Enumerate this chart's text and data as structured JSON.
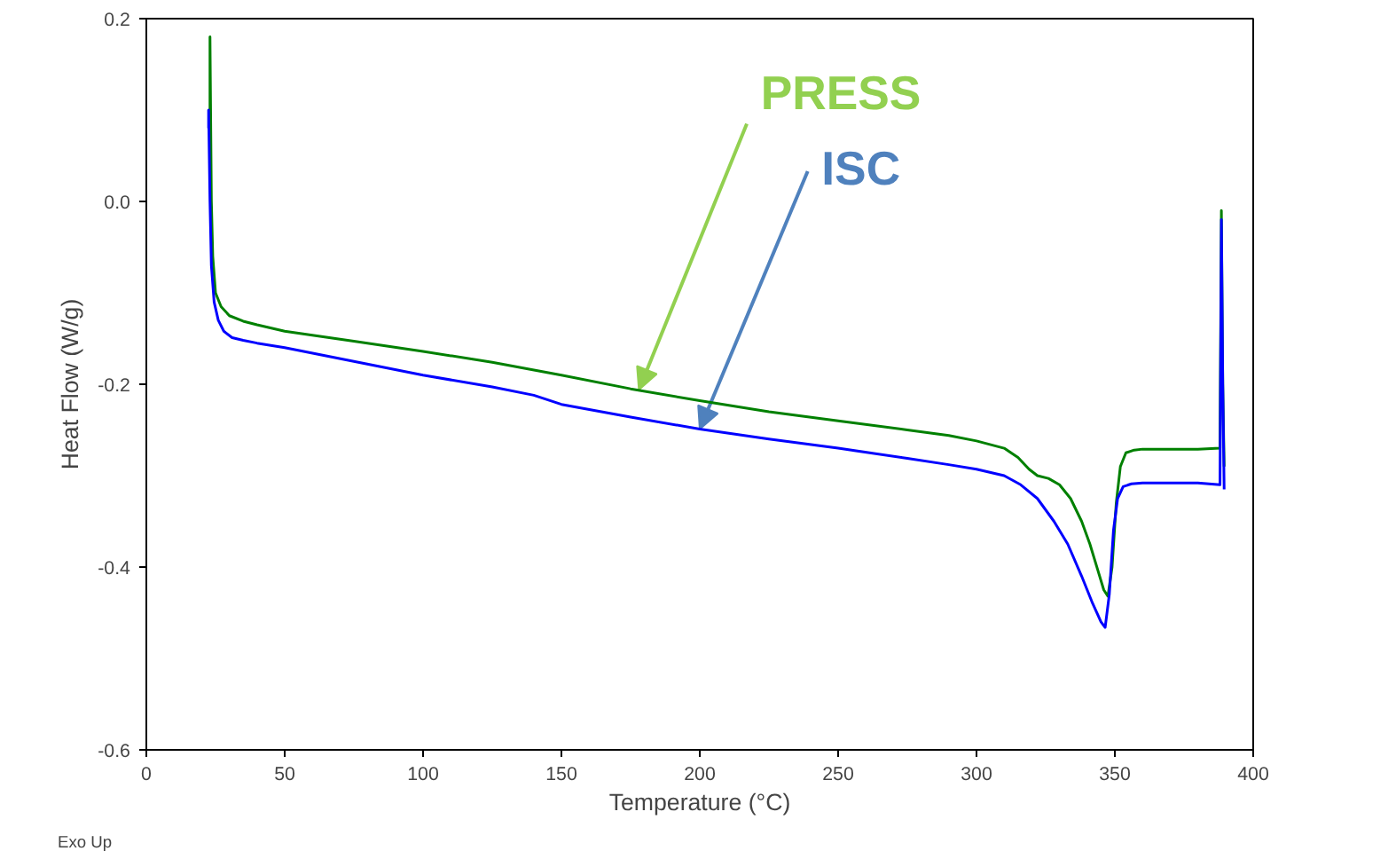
{
  "chart_data": {
    "type": "line",
    "xlabel": "Temperature (°C)",
    "ylabel": "Heat Flow (W/g)",
    "xlim": [
      0,
      400
    ],
    "ylim": [
      -0.6,
      0.2
    ],
    "xticks": [
      0,
      50,
      100,
      150,
      200,
      250,
      300,
      350,
      400
    ],
    "yticks": [
      {
        "value": -0.6,
        "label": "-0.6"
      },
      {
        "value": -0.4,
        "label": "-0.4"
      },
      {
        "value": -0.2,
        "label": "-0.2"
      },
      {
        "value": 0,
        "label": "0.0"
      },
      {
        "value": 0.2,
        "label": "0.2"
      }
    ],
    "grid": false,
    "marker": "none",
    "line_style": "solid",
    "annotations": [
      {
        "text": "PRESS",
        "x": 178,
        "y": -0.206
      },
      {
        "text": "ISC",
        "x": 200,
        "y": -0.249
      },
      "Exo Up"
    ],
    "series": [
      {
        "color": "#008000",
        "x": [
          23,
          23,
          23.5,
          24,
          25,
          27,
          30,
          35,
          40,
          50,
          75,
          100,
          125,
          150,
          175,
          200,
          225,
          250,
          275,
          290,
          300,
          310,
          315,
          319,
          322,
          326,
          330,
          334,
          338,
          341,
          344,
          346,
          347.5,
          349,
          350.5,
          352,
          354,
          357,
          360,
          370,
          380,
          388,
          388.5,
          389,
          389.5
        ],
        "values": [
          0.1,
          0.18,
          0.0,
          -0.06,
          -0.1,
          -0.115,
          -0.125,
          -0.131,
          -0.135,
          -0.142,
          -0.153,
          -0.164,
          -0.176,
          -0.19,
          -0.205,
          -0.218,
          -0.23,
          -0.24,
          -0.25,
          -0.256,
          -0.262,
          -0.27,
          -0.28,
          -0.293,
          -0.3,
          -0.303,
          -0.31,
          -0.325,
          -0.35,
          -0.375,
          -0.405,
          -0.425,
          -0.432,
          -0.4,
          -0.33,
          -0.29,
          -0.275,
          -0.272,
          -0.271,
          -0.271,
          -0.271,
          -0.27,
          -0.01,
          -0.2,
          -0.29
        ]
      },
      {
        "color": "#0000ff",
        "x": [
          22.5,
          22.5,
          23,
          23.5,
          24.5,
          26,
          28,
          31,
          35,
          40,
          50,
          75,
          100,
          125,
          140,
          150,
          175,
          200,
          225,
          250,
          275,
          290,
          300,
          310,
          316,
          322,
          328,
          333,
          338,
          342,
          345,
          346.5,
          348,
          349.5,
          351,
          353,
          356,
          360,
          370,
          380,
          388,
          388.5,
          389,
          389.5
        ],
        "values": [
          0.08,
          0.1,
          0.0,
          -0.07,
          -0.11,
          -0.13,
          -0.142,
          -0.149,
          -0.152,
          -0.155,
          -0.16,
          -0.175,
          -0.19,
          -0.203,
          -0.212,
          -0.222,
          -0.236,
          -0.249,
          -0.26,
          -0.27,
          -0.281,
          -0.288,
          -0.293,
          -0.3,
          -0.31,
          -0.325,
          -0.35,
          -0.375,
          -0.41,
          -0.44,
          -0.46,
          -0.466,
          -0.43,
          -0.36,
          -0.325,
          -0.312,
          -0.309,
          -0.308,
          -0.308,
          -0.308,
          -0.31,
          -0.02,
          -0.2,
          -0.315
        ]
      }
    ]
  }
}
